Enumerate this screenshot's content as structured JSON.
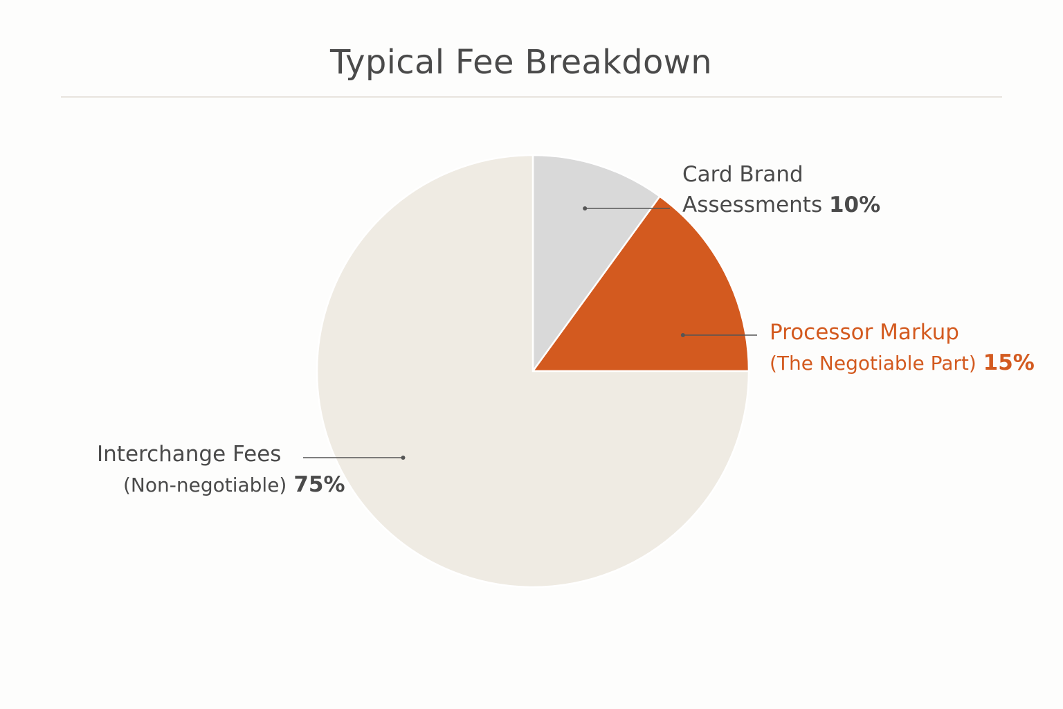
{
  "chart_data": {
    "type": "pie",
    "title": "Typical Fee Breakdown",
    "slices": [
      {
        "label": "Card Brand Assessments",
        "line1": "Card Brand",
        "line2": "Assessments",
        "value": 10,
        "value_label": "10%",
        "color": "#d9d9d9"
      },
      {
        "label": "Processor Markup (The Negotiable Part)",
        "line1": "Processor Markup",
        "line2": "(The Negotiable Part)",
        "value": 15,
        "value_label": "15%",
        "color": "#d35a1f"
      },
      {
        "label": "Interchange Fees (Non-negotiable)",
        "line1": "Interchange Fees",
        "line2": "(Non-negotiable)",
        "value": 75,
        "value_label": "75%",
        "color": "#efebe3"
      }
    ],
    "start_angle_deg": 0,
    "direction": "clockwise"
  }
}
